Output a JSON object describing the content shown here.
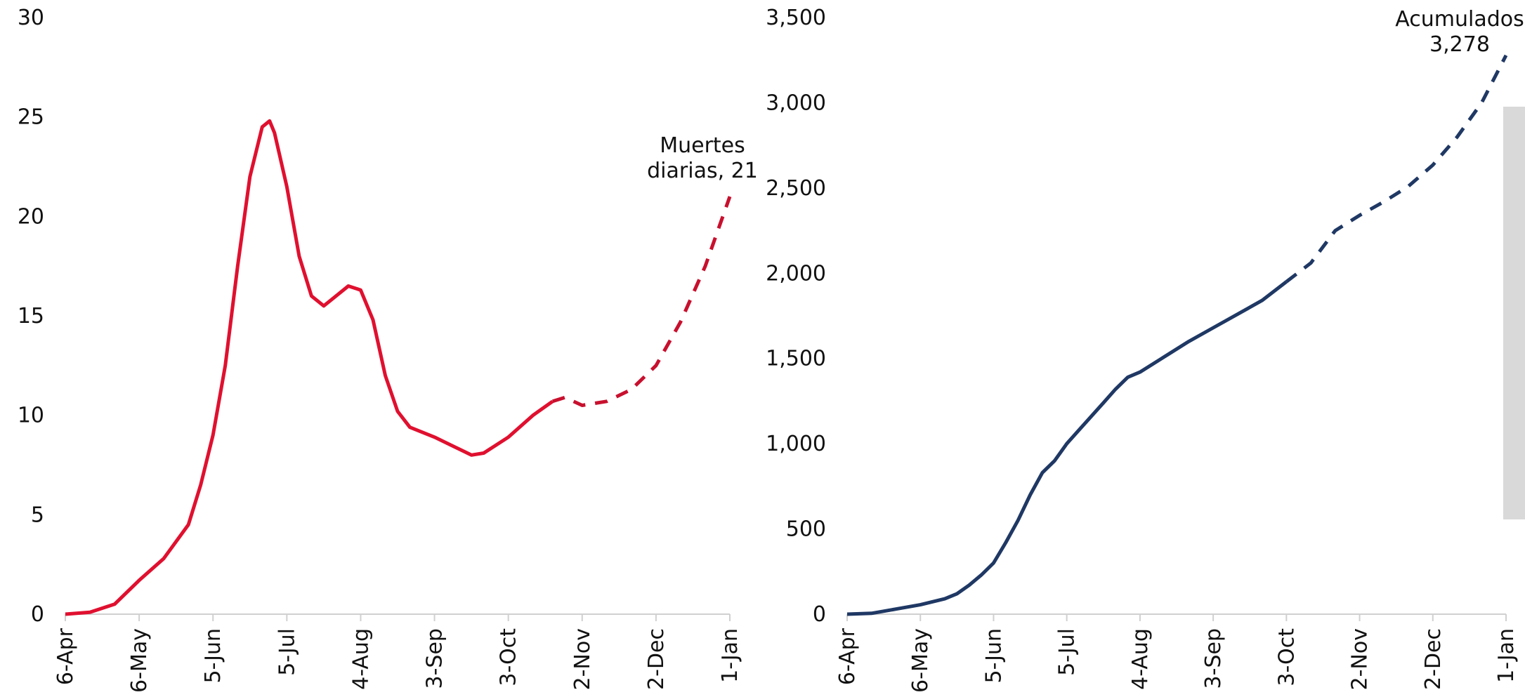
{
  "chart_data": [
    {
      "type": "line",
      "annotation": [
        "Muertes",
        "diarias, 21"
      ],
      "x": [
        0,
        10,
        20,
        30,
        40,
        50,
        55,
        60,
        65,
        70,
        75,
        80,
        83,
        85,
        90,
        95,
        100,
        105,
        110,
        115,
        120,
        125,
        130,
        135,
        140,
        150,
        160,
        165,
        170,
        180,
        190,
        198,
        203,
        210,
        220,
        230,
        240,
        250,
        260,
        270
      ],
      "xlim": [
        0,
        270
      ],
      "xticks": [
        {
          "value": 0,
          "label": "6-Apr"
        },
        {
          "value": 30,
          "label": "6-May"
        },
        {
          "value": 60,
          "label": "5-Jun"
        },
        {
          "value": 90,
          "label": "5-Jul"
        },
        {
          "value": 120,
          "label": "4-Aug"
        },
        {
          "value": 150,
          "label": "3-Sep"
        },
        {
          "value": 180,
          "label": "3-Oct"
        },
        {
          "value": 210,
          "label": "2-Nov"
        },
        {
          "value": 240,
          "label": "2-Dec"
        },
        {
          "value": 270,
          "label": "1-Jan"
        }
      ],
      "ylim": [
        0,
        30
      ],
      "yticks": [
        0,
        5,
        10,
        15,
        20,
        25,
        30
      ],
      "series": [
        {
          "color": "#e0102f",
          "style": "solid",
          "values": [
            0,
            0.1,
            0.5,
            1.7,
            2.8,
            4.5,
            6.5,
            9,
            12.5,
            17.5,
            22,
            24.5,
            24.8,
            24.2,
            21.5,
            18,
            16,
            15.5,
            16,
            16.5,
            16.3,
            14.8,
            12,
            10.2,
            9.4,
            8.9,
            8.3,
            8.0,
            8.1,
            8.9,
            10,
            10.7,
            null,
            null,
            null,
            null,
            null,
            null,
            null,
            null
          ]
        },
        {
          "color": "#c8102e",
          "style": "dashed",
          "values": [
            null,
            null,
            null,
            null,
            null,
            null,
            null,
            null,
            null,
            null,
            null,
            null,
            null,
            null,
            null,
            null,
            null,
            null,
            null,
            null,
            null,
            null,
            null,
            null,
            null,
            null,
            null,
            null,
            null,
            null,
            null,
            10.7,
            10.9,
            10.5,
            10.7,
            11.3,
            12.5,
            14.7,
            17.5,
            21
          ]
        }
      ]
    },
    {
      "type": "line",
      "annotation": [
        "Acumulados",
        "3,278"
      ],
      "x": [
        0,
        10,
        20,
        30,
        40,
        45,
        50,
        55,
        60,
        65,
        70,
        75,
        80,
        85,
        90,
        95,
        100,
        105,
        110,
        115,
        120,
        130,
        140,
        150,
        160,
        170,
        180,
        190,
        200,
        210,
        220,
        230,
        240,
        250,
        260,
        270
      ],
      "xlim": [
        0,
        270
      ],
      "xticks": [
        {
          "value": 0,
          "label": "6-Apr"
        },
        {
          "value": 30,
          "label": "6-May"
        },
        {
          "value": 60,
          "label": "5-Jun"
        },
        {
          "value": 90,
          "label": "5-Jul"
        },
        {
          "value": 120,
          "label": "4-Aug"
        },
        {
          "value": 150,
          "label": "3-Sep"
        },
        {
          "value": 180,
          "label": "3-Oct"
        },
        {
          "value": 210,
          "label": "2-Nov"
        },
        {
          "value": 240,
          "label": "2-Dec"
        },
        {
          "value": 270,
          "label": "1-Jan"
        }
      ],
      "ylim": [
        0,
        3500
      ],
      "yticks": [
        0,
        500,
        {
          "value": 1000,
          "label": "1,000"
        },
        {
          "value": 1500,
          "label": "1,500"
        },
        {
          "value": 2000,
          "label": "2,000"
        },
        {
          "value": 2500,
          "label": "2,500"
        },
        {
          "value": 3000,
          "label": "3,000"
        },
        {
          "value": 3500,
          "label": "3,500"
        }
      ],
      "series": [
        {
          "color": "#1f3864",
          "style": "solid",
          "values": [
            0,
            5,
            30,
            55,
            90,
            120,
            170,
            230,
            300,
            420,
            550,
            700,
            830,
            900,
            1000,
            1080,
            1160,
            1240,
            1320,
            1390,
            1420,
            1510,
            1600,
            1680,
            1760,
            1840,
            1950,
            null,
            null,
            null,
            null,
            null,
            null,
            null,
            null,
            null
          ]
        },
        {
          "color": "#1f3864",
          "style": "dashed",
          "values": [
            null,
            null,
            null,
            null,
            null,
            null,
            null,
            null,
            null,
            null,
            null,
            null,
            null,
            null,
            null,
            null,
            null,
            null,
            null,
            null,
            null,
            null,
            null,
            null,
            null,
            null,
            1950,
            2060,
            2250,
            2340,
            2420,
            2510,
            2635,
            2800,
            3000,
            3278
          ]
        }
      ]
    }
  ]
}
